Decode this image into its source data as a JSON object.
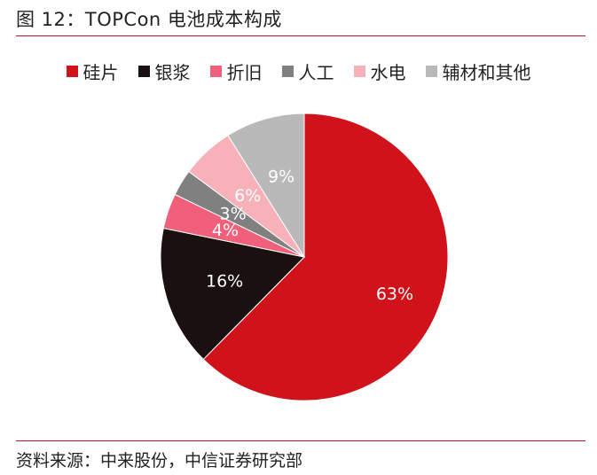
{
  "header": {
    "title": "图 12：TOPCon 电池成本构成"
  },
  "footer": {
    "source": "资料来源：中来股份，中信证券研究部"
  },
  "chart_data": {
    "type": "pie",
    "title": "图 12：TOPCon 电池成本构成",
    "legend_position": "top",
    "slices": [
      {
        "name": "硅片",
        "value": 63,
        "label": "63%",
        "color": "#d0121b",
        "text_color": "#ffffff"
      },
      {
        "name": "银浆",
        "value": 16,
        "label": "16%",
        "color": "#1a1010",
        "text_color": "#ffffff"
      },
      {
        "name": "折旧",
        "value": 4,
        "label": "4%",
        "color": "#f0607a",
        "text_color": "#ffffff"
      },
      {
        "name": "人工",
        "value": 3,
        "label": "3%",
        "color": "#808080",
        "text_color": "#ffffff"
      },
      {
        "name": "水电",
        "value": 6,
        "label": "6%",
        "color": "#f7b2b9",
        "text_color": "#ffffff"
      },
      {
        "name": "辅材和其他",
        "value": 9,
        "label": "9%",
        "color": "#b9b9b9",
        "text_color": "#ffffff"
      }
    ]
  }
}
